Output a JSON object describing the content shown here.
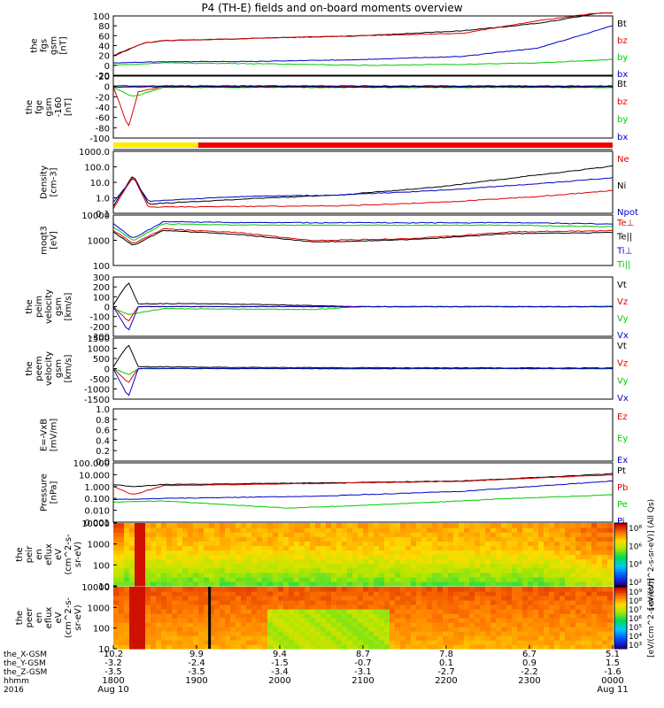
{
  "title": "P4 (TH-E) fields and on-board moments overview",
  "year": "2016",
  "colors": {
    "black": "#000000",
    "red": "#e00000",
    "blue": "#0000cc",
    "green": "#00cc00",
    "yellow": "#ffee00",
    "darkred": "#990000"
  },
  "chart_data": [
    {
      "type": "line",
      "ylabel_lines": [
        "the",
        "fgs",
        "gsm",
        "[nT]"
      ],
      "ylim": [
        -20,
        100
      ],
      "tick_labels": [
        "100",
        "80",
        "60",
        "40",
        "20",
        "0",
        "-20"
      ],
      "legend": [
        "Bt",
        "bz",
        "by",
        "bx"
      ],
      "series": [
        {
          "name": "Bt",
          "color": "black",
          "points": [
            [
              0,
              20
            ],
            [
              0.06,
              45
            ],
            [
              0.1,
              50
            ],
            [
              0.3,
              55
            ],
            [
              0.5,
              60
            ],
            [
              0.7,
              70
            ],
            [
              0.85,
              85
            ],
            [
              1,
              110
            ]
          ]
        },
        {
          "name": "bz",
          "color": "red",
          "points": [
            [
              0,
              18
            ],
            [
              0.06,
              45
            ],
            [
              0.1,
              50
            ],
            [
              0.3,
              55
            ],
            [
              0.5,
              60
            ],
            [
              0.7,
              65
            ],
            [
              0.85,
              90
            ],
            [
              1,
              110
            ]
          ]
        },
        {
          "name": "by",
          "color": "green",
          "points": [
            [
              0,
              0
            ],
            [
              0.1,
              5
            ],
            [
              0.3,
              3
            ],
            [
              0.5,
              0
            ],
            [
              0.7,
              2
            ],
            [
              0.85,
              5
            ],
            [
              1,
              12
            ]
          ]
        },
        {
          "name": "bx",
          "color": "blue",
          "points": [
            [
              0,
              5
            ],
            [
              0.1,
              7
            ],
            [
              0.3,
              8
            ],
            [
              0.5,
              12
            ],
            [
              0.7,
              18
            ],
            [
              0.85,
              35
            ],
            [
              1,
              80
            ]
          ]
        }
      ]
    },
    {
      "type": "line",
      "ylabel_lines": [
        "the",
        "fge",
        "gsm",
        "-160",
        "[nT]"
      ],
      "ylim": [
        -100,
        20
      ],
      "tick_labels": [
        "20",
        "0",
        "-20",
        "-40",
        "-60",
        "-80",
        "-100"
      ],
      "legend": [
        "Bt",
        "bz",
        "by",
        "bx"
      ],
      "series": [
        {
          "name": "bz",
          "color": "red",
          "points": [
            [
              0,
              0
            ],
            [
              0.03,
              -80
            ],
            [
              0.05,
              -10
            ],
            [
              0.1,
              0
            ],
            [
              0.5,
              0
            ],
            [
              1,
              0
            ]
          ]
        },
        {
          "name": "by",
          "color": "green",
          "points": [
            [
              0,
              -2
            ],
            [
              0.04,
              -20
            ],
            [
              0.1,
              -2
            ],
            [
              0.5,
              -2
            ],
            [
              1,
              -2
            ]
          ]
        },
        {
          "name": "bx",
          "color": "blue",
          "points": [
            [
              0,
              1
            ],
            [
              0.5,
              1
            ],
            [
              1,
              1
            ]
          ]
        },
        {
          "name": "Bt",
          "color": "black",
          "points": [
            [
              0,
              -1
            ],
            [
              0.5,
              -1
            ],
            [
              1,
              -1
            ]
          ]
        }
      ]
    },
    {
      "type": "line",
      "ylabel_lines": [
        "Density",
        "[cm-3]"
      ],
      "scale": "log",
      "ylim": [
        0.1,
        1000
      ],
      "tick_labels": [
        "1000.0",
        "100.0",
        "10.0",
        "1.0",
        "0.1"
      ],
      "legend": [
        "Ne",
        "Ni",
        "Npot"
      ],
      "series": [
        {
          "name": "Ni",
          "color": "black",
          "points": [
            [
              0,
              0.3
            ],
            [
              0.04,
              30
            ],
            [
              0.07,
              0.4
            ],
            [
              0.25,
              0.8
            ],
            [
              0.45,
              1.5
            ],
            [
              0.65,
              5
            ],
            [
              0.85,
              30
            ],
            [
              1,
              110
            ]
          ]
        },
        {
          "name": "Npot",
          "color": "blue",
          "points": [
            [
              0,
              0.5
            ],
            [
              0.04,
              20
            ],
            [
              0.07,
              0.6
            ],
            [
              0.25,
              1.2
            ],
            [
              0.45,
              1.5
            ],
            [
              0.65,
              3
            ],
            [
              0.85,
              8
            ],
            [
              1,
              20
            ]
          ]
        },
        {
          "name": "Ne",
          "color": "red",
          "points": [
            [
              0,
              0.2
            ],
            [
              0.04,
              25
            ],
            [
              0.07,
              0.25
            ],
            [
              0.45,
              0.3
            ],
            [
              0.65,
              0.5
            ],
            [
              0.85,
              1.2
            ],
            [
              1,
              3
            ]
          ]
        }
      ]
    },
    {
      "type": "line",
      "ylabel_lines": [
        "moqt3",
        "[eV]"
      ],
      "scale": "log",
      "ylim": [
        10,
        10000
      ],
      "tick_labels": [
        "10000",
        "1000",
        "100"
      ],
      "legend": [
        "Te⊥",
        "Te||",
        "Ti⊥",
        "Ti||"
      ],
      "series": [
        {
          "name": "Ti||",
          "color": "green",
          "points": [
            [
              0,
              2000
            ],
            [
              0.04,
              300
            ],
            [
              0.1,
              3000
            ],
            [
              0.3,
              2500
            ],
            [
              0.5,
              2500
            ],
            [
              0.8,
              2500
            ],
            [
              1,
              2000
            ]
          ]
        },
        {
          "name": "Ti⊥",
          "color": "blue",
          "points": [
            [
              0,
              3000
            ],
            [
              0.04,
              400
            ],
            [
              0.1,
              4000
            ],
            [
              0.3,
              3500
            ],
            [
              0.5,
              3500
            ],
            [
              0.8,
              3500
            ],
            [
              1,
              3000
            ]
          ]
        },
        {
          "name": "Te⊥",
          "color": "red",
          "points": [
            [
              0,
              1200
            ],
            [
              0.04,
              200
            ],
            [
              0.1,
              1500
            ],
            [
              0.25,
              900
            ],
            [
              0.4,
              300
            ],
            [
              0.6,
              400
            ],
            [
              0.8,
              1000
            ],
            [
              1,
              1200
            ]
          ]
        },
        {
          "name": "Te||",
          "color": "black",
          "points": [
            [
              0,
              1000
            ],
            [
              0.04,
              150
            ],
            [
              0.1,
              1200
            ],
            [
              0.25,
              700
            ],
            [
              0.4,
              250
            ],
            [
              0.6,
              350
            ],
            [
              0.8,
              800
            ],
            [
              1,
              900
            ]
          ]
        }
      ]
    },
    {
      "type": "line",
      "ylabel_lines": [
        "the",
        "peim",
        "velocity",
        "gsm",
        "[km/s]"
      ],
      "ylim": [
        -300,
        300
      ],
      "tick_labels": [
        "300",
        "200",
        "100",
        "0",
        "-100",
        "-200",
        "-300"
      ],
      "legend": [
        "Vt",
        "Vz",
        "Vy",
        "Vx"
      ],
      "series": [
        {
          "name": "Vt",
          "color": "black",
          "points": [
            [
              0,
              20
            ],
            [
              0.03,
              250
            ],
            [
              0.05,
              30
            ],
            [
              0.2,
              30
            ],
            [
              0.4,
              10
            ],
            [
              0.5,
              0
            ],
            [
              1,
              0
            ]
          ]
        },
        {
          "name": "Vz",
          "color": "red",
          "points": [
            [
              0,
              0
            ],
            [
              0.03,
              -150
            ],
            [
              0.05,
              0
            ],
            [
              0.5,
              0
            ],
            [
              1,
              0
            ]
          ]
        },
        {
          "name": "Vy",
          "color": "green",
          "points": [
            [
              0,
              -20
            ],
            [
              0.03,
              -80
            ],
            [
              0.1,
              -20
            ],
            [
              0.4,
              -30
            ],
            [
              0.5,
              0
            ],
            [
              1,
              0
            ]
          ]
        },
        {
          "name": "Vx",
          "color": "blue",
          "points": [
            [
              0,
              0
            ],
            [
              0.03,
              -250
            ],
            [
              0.05,
              0
            ],
            [
              1,
              0
            ]
          ]
        }
      ]
    },
    {
      "type": "line",
      "ylabel_lines": [
        "the",
        "peem",
        "velocity",
        "gsm",
        "[km/s]"
      ],
      "ylim": [
        -1500,
        1500
      ],
      "tick_labels": [
        "1500",
        "1000",
        "500",
        "0",
        "-500",
        "-1000",
        "-1500"
      ],
      "legend": [
        "Vt",
        "Vz",
        "Vy",
        "Vx"
      ],
      "series": [
        {
          "name": "Vt",
          "color": "black",
          "points": [
            [
              0,
              100
            ],
            [
              0.03,
              1200
            ],
            [
              0.05,
              100
            ],
            [
              0.3,
              50
            ],
            [
              1,
              30
            ]
          ]
        },
        {
          "name": "Vz",
          "color": "red",
          "points": [
            [
              0,
              0
            ],
            [
              0.03,
              -700
            ],
            [
              0.05,
              0
            ],
            [
              1,
              0
            ]
          ]
        },
        {
          "name": "Vy",
          "color": "green",
          "points": [
            [
              0,
              0
            ],
            [
              0.03,
              -300
            ],
            [
              0.05,
              0
            ],
            [
              1,
              0
            ]
          ]
        },
        {
          "name": "Vx",
          "color": "blue",
          "points": [
            [
              0,
              0
            ],
            [
              0.03,
              -1400
            ],
            [
              0.05,
              0
            ],
            [
              1,
              0
            ]
          ]
        }
      ]
    },
    {
      "type": "line",
      "ylabel_lines": [
        "E=-VxB",
        "[mV/m]"
      ],
      "ylim": [
        0,
        1
      ],
      "tick_labels": [
        "1.0",
        "0.8",
        "0.6",
        "0.4",
        "0.2",
        "0.0"
      ],
      "legend": [
        "Ez",
        "Ey",
        "Ex"
      ],
      "series": []
    },
    {
      "type": "line",
      "ylabel_lines": [
        "Pressure",
        "[nPa]"
      ],
      "scale": "log",
      "ylim": [
        0.001,
        100
      ],
      "tick_labels": [
        "100.000",
        "10.000",
        "1.000",
        "0.100",
        "0.010",
        "0.001"
      ],
      "legend": [
        "Pt",
        "Pb",
        "Pe",
        "Pi"
      ],
      "series": [
        {
          "name": "Pt",
          "color": "black",
          "points": [
            [
              0,
              1.5
            ],
            [
              0.04,
              1
            ],
            [
              0.1,
              1.5
            ],
            [
              0.4,
              2
            ],
            [
              0.7,
              3
            ],
            [
              1,
              12
            ]
          ]
        },
        {
          "name": "Pb",
          "color": "red",
          "points": [
            [
              0,
              1
            ],
            [
              0.04,
              0.2
            ],
            [
              0.1,
              1.2
            ],
            [
              0.4,
              1.8
            ],
            [
              0.7,
              2.8
            ],
            [
              1,
              10
            ]
          ]
        },
        {
          "name": "Pi",
          "color": "blue",
          "points": [
            [
              0,
              0.08
            ],
            [
              0.1,
              0.1
            ],
            [
              0.4,
              0.15
            ],
            [
              0.7,
              0.4
            ],
            [
              1,
              3
            ]
          ]
        },
        {
          "name": "Pe",
          "color": "green",
          "points": [
            [
              0,
              0.05
            ],
            [
              0.1,
              0.06
            ],
            [
              0.35,
              0.015
            ],
            [
              0.6,
              0.04
            ],
            [
              0.8,
              0.1
            ],
            [
              1,
              0.2
            ]
          ]
        }
      ]
    },
    {
      "type": "heatmap",
      "ylabel_lines": [
        "the",
        "peir",
        "en",
        "eflux",
        "eV",
        "(cm^2-s-",
        "sr-eV)"
      ],
      "scale": "log",
      "ylim": [
        10,
        10000
      ],
      "tick_labels": [
        "10000",
        "1000",
        "100",
        "10"
      ],
      "colorbar_label": "[eV/(cm^2-s-sr-eV)] (All Qs)",
      "colorbar_ticks": [
        "10⁸",
        "10⁶",
        "10⁴",
        "10²"
      ]
    },
    {
      "type": "heatmap",
      "ylabel_lines": [
        "the",
        "peer",
        "en",
        "eflux",
        "eV",
        "(cm^2-s-",
        "sr-eV)"
      ],
      "scale": "log",
      "ylim": [
        10,
        10000
      ],
      "tick_labels": [
        "10000",
        "1000",
        "100",
        "10"
      ],
      "colorbar_label": "[eV/(cm^2-s-sr-eV)]",
      "colorbar_ticks": [
        "10⁹",
        "10⁸",
        "10⁷",
        "10⁶",
        "10⁵",
        "10⁴",
        "10³"
      ]
    }
  ],
  "x_axis": {
    "row_labels": [
      "the_X-GSM",
      "the_Y-GSM",
      "the_Z-GSM",
      "hhmm",
      "2016"
    ],
    "columns": [
      [
        "10.2",
        "-3.2",
        "-3.5",
        "1800",
        "Aug 10"
      ],
      [
        "9.9",
        "-2.4",
        "-3.5",
        "1900",
        ""
      ],
      [
        "9.4",
        "-1.5",
        "-3.4",
        "2000",
        ""
      ],
      [
        "8.7",
        "-0.7",
        "-3.1",
        "2100",
        ""
      ],
      [
        "7.8",
        "0.1",
        "-2.7",
        "2200",
        ""
      ],
      [
        "6.7",
        "0.9",
        "-2.2",
        "2300",
        ""
      ],
      [
        "5.1",
        "1.5",
        "-1.6",
        "0000",
        "Aug 11"
      ]
    ]
  }
}
